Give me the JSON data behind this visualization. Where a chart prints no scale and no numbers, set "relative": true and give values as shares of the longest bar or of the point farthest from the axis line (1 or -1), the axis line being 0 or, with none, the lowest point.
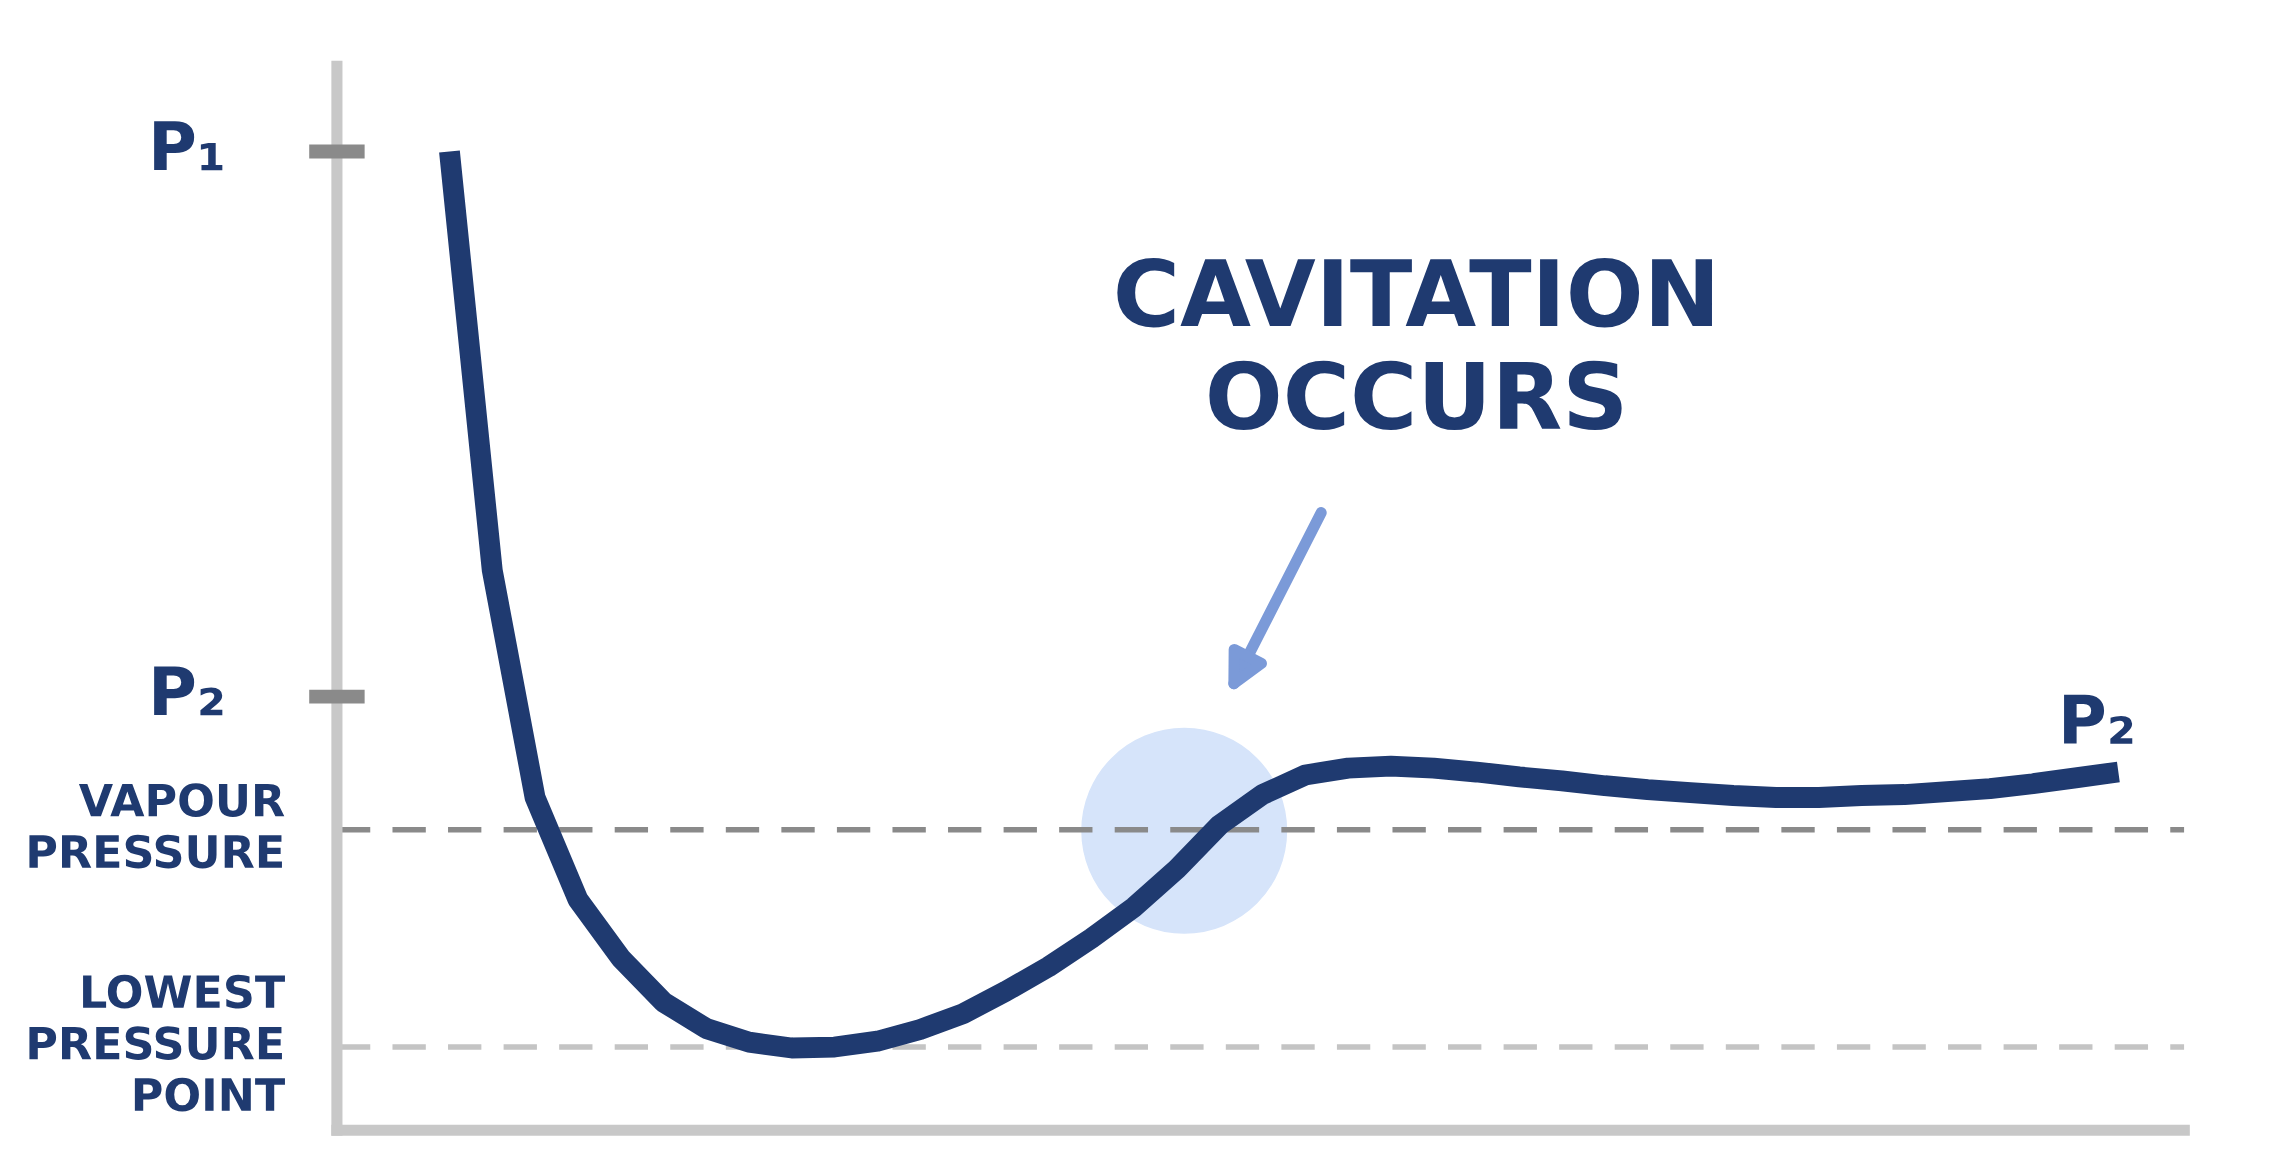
{
  "chart_data": {
    "type": "line",
    "relative": true,
    "categories": [
      null,
      null,
      null,
      null,
      null,
      null,
      null,
      null,
      null,
      null,
      null,
      null,
      null,
      null,
      null,
      null,
      null,
      null,
      null,
      null,
      null,
      null,
      null,
      null,
      null,
      null,
      null,
      null,
      null,
      null,
      null,
      null,
      null,
      null,
      null,
      null,
      null,
      null,
      null,
      null
    ],
    "series": [
      {
        "color": "#1f3a70",
        "values": [
          1.0,
          0.572,
          0.34,
          0.236,
          0.176,
          0.131,
          0.104,
          0.09,
          0.084,
          0.085,
          0.091,
          0.103,
          0.119,
          0.142,
          0.167,
          0.196,
          0.228,
          0.267,
          0.312,
          0.343,
          0.363,
          0.37,
          0.372,
          0.37,
          0.366,
          0.361,
          0.357,
          0.352,
          0.348,
          0.345,
          0.342,
          0.34,
          0.34,
          0.342,
          0.343,
          0.346,
          0.349,
          0.354,
          0.36,
          0.366
        ]
      }
    ],
    "ref_lines": [
      {
        "axis": "y",
        "value": 0.307,
        "label": "VAPOUR\nPRESSURE",
        "color": "#8a8a8a",
        "line_style": "dashed"
      },
      {
        "axis": "y",
        "value": 0.085,
        "label": "LOWEST\nPRESSURE\nPOINT",
        "color": "#c4c4c4",
        "line_style": "dashed"
      }
    ],
    "annotations": [
      "CAVITATION\nOCCURS",
      "P₁",
      "P₂",
      "P₂"
    ],
    "legend": false,
    "marker": "none",
    "line_style": "solid"
  }
}
